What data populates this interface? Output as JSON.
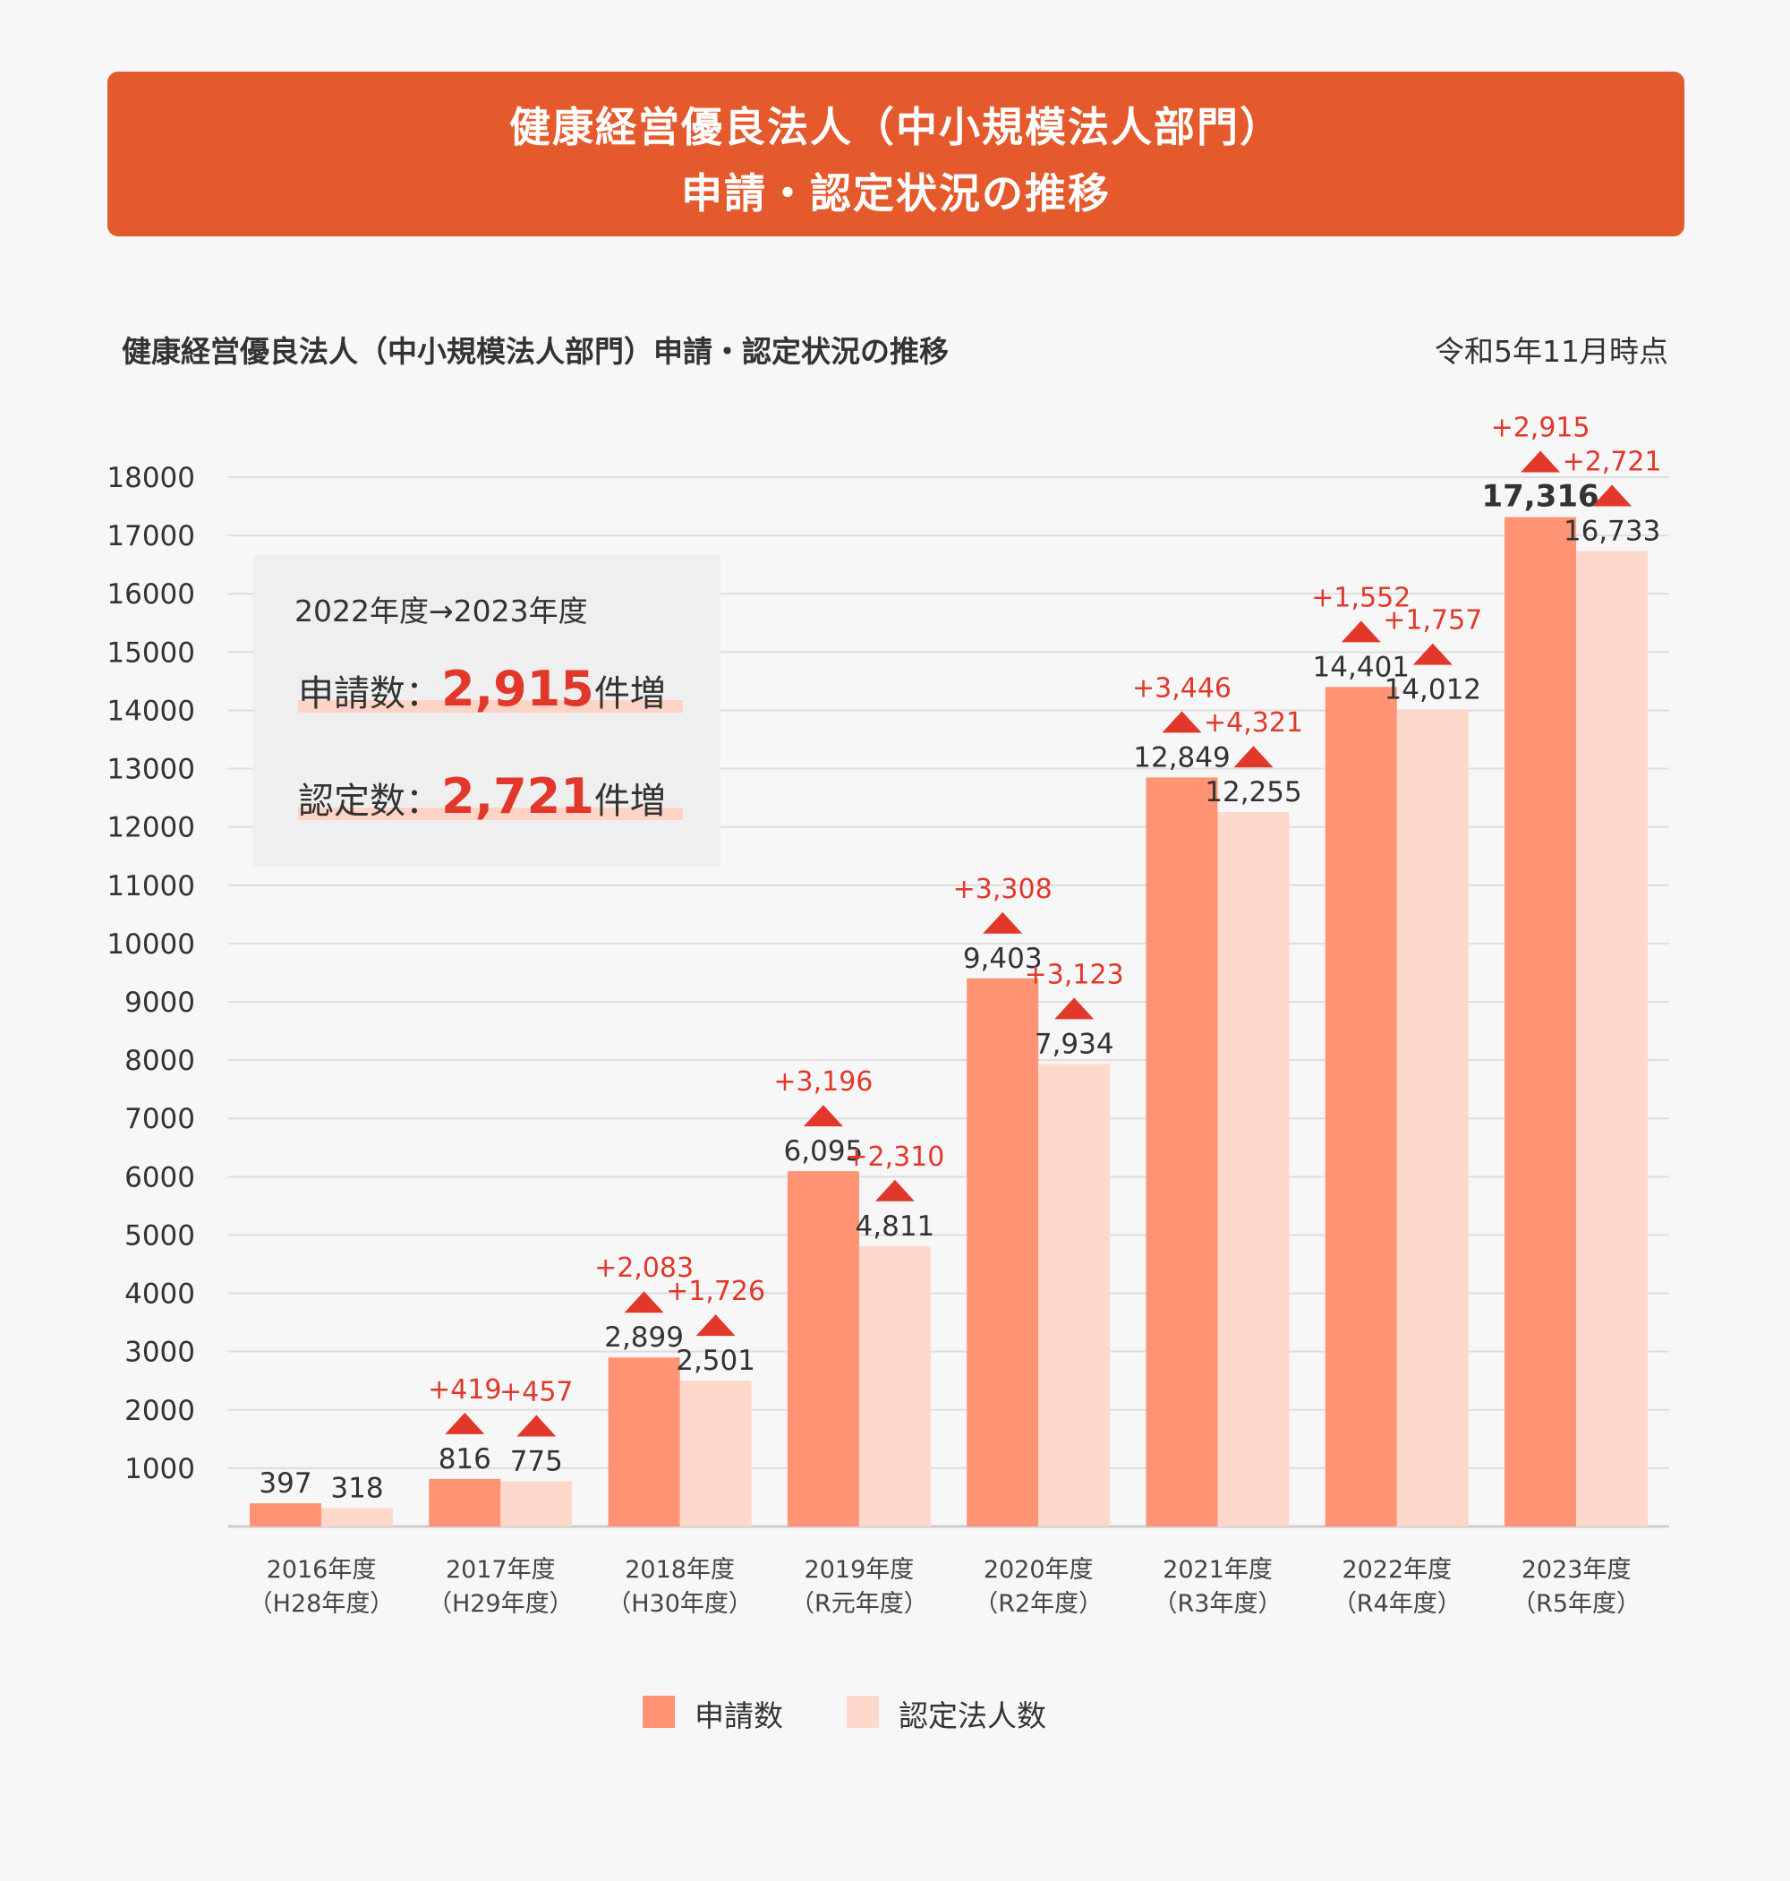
{
  "banner": {
    "line1": "健康経営優良法人（中小規模法人部門）",
    "line2": "申請・認定状況の推移"
  },
  "header": {
    "chart_title": "健康経営優良法人（中小規模法人部門）申請・認定状況の推移",
    "as_of": "令和5年11月時点"
  },
  "summary": {
    "period": "2022年度→2023年度",
    "rows": [
      {
        "label": "申請数：",
        "value": "2,915",
        "suffix": "件増"
      },
      {
        "label": "認定数：",
        "value": "2,721",
        "suffix": "件増"
      }
    ]
  },
  "colors": {
    "application": "#ff9373",
    "certified": "#ffd8cc",
    "increase": "#e2382b",
    "banner": "#e55a2d",
    "grid": "#dddddd"
  },
  "chart_data": {
    "type": "bar",
    "categories": [
      [
        "2016年度",
        "（H28年度）"
      ],
      [
        "2017年度",
        "（H29年度）"
      ],
      [
        "2018年度",
        "（H30年度）"
      ],
      [
        "2019年度",
        "（R元年度）"
      ],
      [
        "2020年度",
        "（R2年度）"
      ],
      [
        "2021年度",
        "（R3年度）"
      ],
      [
        "2022年度",
        "（R4年度）"
      ],
      [
        "2023年度",
        "（R5年度）"
      ]
    ],
    "yticks": [
      1000,
      2000,
      3000,
      4000,
      5000,
      6000,
      7000,
      8000,
      9000,
      10000,
      11000,
      12000,
      13000,
      14000,
      15000,
      16000,
      17000,
      18000
    ],
    "ylim": [
      0,
      18000
    ],
    "grid": true,
    "legend_position": "bottom-center",
    "series": [
      {
        "name": "申請数",
        "values": [
          397,
          816,
          2899,
          6095,
          9403,
          12849,
          14401,
          17316
        ],
        "labels": [
          "397",
          "816",
          "2,899",
          "6,095",
          "9,403",
          "12,849",
          "14,401",
          "17,316"
        ],
        "increases": [
          "",
          "+419",
          "+2,083",
          "+3,196",
          "+3,308",
          "+3,446",
          "+1,552",
          "+2,915"
        ]
      },
      {
        "name": "認定法人数",
        "values": [
          318,
          775,
          2501,
          4811,
          7934,
          12255,
          14012,
          16733
        ],
        "labels": [
          "318",
          "775",
          "2,501",
          "4,811",
          "7,934",
          "12,255",
          "14,012",
          "16,733"
        ],
        "increases": [
          "",
          "+457",
          "+1,726",
          "+2,310",
          "+3,123",
          "+4,321",
          "+1,757",
          "+2,721"
        ]
      }
    ]
  }
}
